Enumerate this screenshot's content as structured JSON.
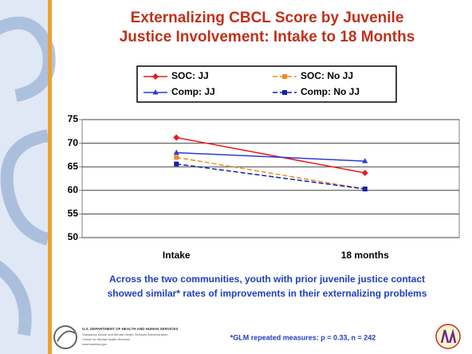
{
  "chart_data": {
    "type": "line",
    "title": [
      "Externalizing CBCL Score by Juvenile",
      "Justice Involvement: Intake to 18 Months"
    ],
    "categories": [
      "Intake",
      "18 months"
    ],
    "series": [
      {
        "name": "SOC: JJ",
        "color": "#e8191f",
        "dash": false,
        "marker": "diamond",
        "values": [
          71.2,
          63.7
        ]
      },
      {
        "name": "SOC: No JJ",
        "color": "#f08a24",
        "dash": true,
        "marker": "square",
        "values": [
          67,
          60.3
        ]
      },
      {
        "name": "Comp: JJ",
        "color": "#2a3bd6",
        "dash": false,
        "marker": "triangle",
        "values": [
          68,
          66.2
        ]
      },
      {
        "name": "Comp: No JJ",
        "color": "#1020b0",
        "dash": true,
        "marker": "square",
        "values": [
          65.6,
          60.3
        ]
      }
    ],
    "ylim": [
      50,
      75
    ],
    "yticks": [
      50,
      55,
      60,
      65,
      70,
      75
    ],
    "grid": true,
    "caption": [
      "Across the two communities, youth with prior juvenile justice contact",
      "showed similar* rates of improvements in their externalizing problems"
    ],
    "footnote": "*GLM repeated measures: p = 0.33, n = 242",
    "logo_text": [
      "U.S. DEPARTMENT OF HEALTH AND HUMAN SERVICES",
      "Substance Abuse and Mental Health Services Administration",
      "Center for Mental Health Services",
      "www.samhsa.gov"
    ]
  }
}
